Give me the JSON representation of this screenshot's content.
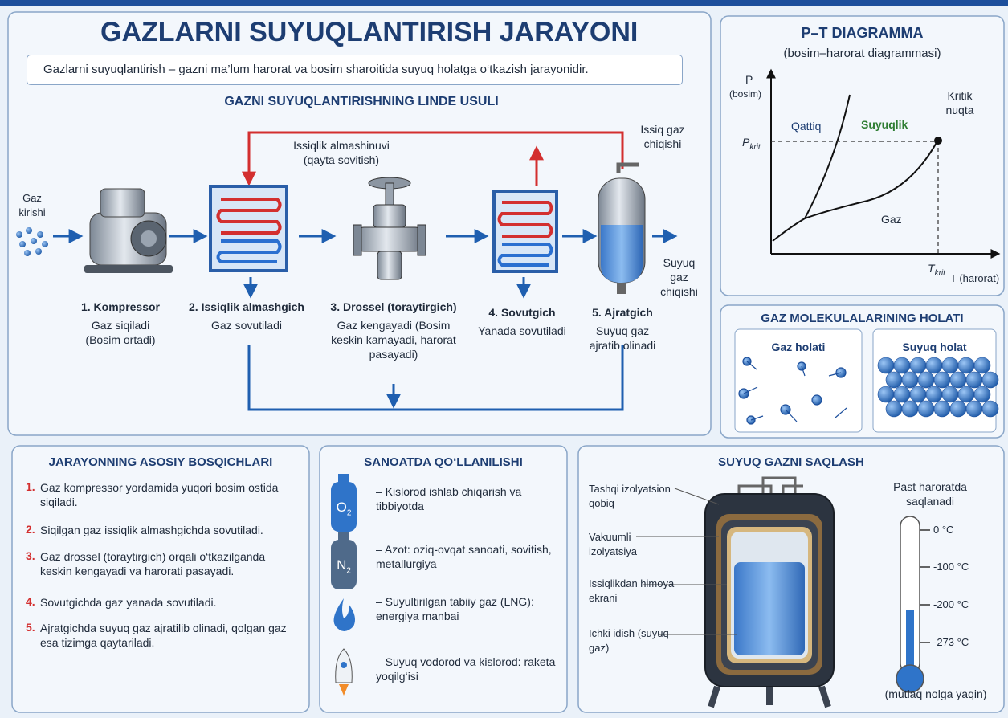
{
  "title": "GAZLARNI SUYUQLANTIRISH JARAYONI",
  "definition": "Gazlarni suyuqlantirish – gazni ma’lum harorat va bosim sharoitida suyuq holatga o‘tkazish jarayonidir.",
  "process": {
    "title": "GAZNI SUYUQLANTIRISHNING LINDE USULI",
    "input": "Gaz kirishi",
    "output": "Suyuq gaz chiqishi",
    "hot_exit": "Issiq gaz chiqishi",
    "heat_exchange": "Issiqlik almashinuvi (qayta sovitish)",
    "steps": [
      {
        "name": "1. Kompressor",
        "desc": "Gaz siqiladi (Bosim ortadi)"
      },
      {
        "name": "2. Issiqlik almashgich",
        "desc": "Gaz sovutiladi"
      },
      {
        "name": "3. Drossel (toraytirgich)",
        "desc": "Gaz kengayadi (Bosim keskin kamayadi, harorat pasayadi)"
      },
      {
        "name": "4. Sovutgich",
        "desc": "Yanada sovutiladi"
      },
      {
        "name": "5. Ajratgich",
        "desc": "Suyuq gaz ajratib olinadi"
      }
    ]
  },
  "pt_diagram": {
    "title": "P–T DIAGRAMMA",
    "subtitle": "(bosim–harorat diagrammasi)",
    "y_label": "P",
    "y_sub": "(bosim)",
    "x_label": "T (harorat)",
    "solid": "Qattiq",
    "liquid": "Suyuqlik",
    "gas": "Gaz",
    "critical": "Kritik nuqta",
    "p_crit": "P",
    "p_crit_sub": "krit",
    "t_crit": "T",
    "t_crit_sub": "krit"
  },
  "molecules": {
    "title": "GAZ MOLEKULALARINING HOLATI",
    "gas": "Gaz holati",
    "liquid": "Suyuq holat"
  },
  "stages": {
    "title": "JARAYONNING ASOSIY BOSQICHLARI",
    "items": [
      {
        "num": "1.",
        "text": "Gaz kompressor yordamida yuqori bosim ostida siqiladi."
      },
      {
        "num": "2.",
        "text": "Siqilgan gaz issiqlik almashgichda sovutiladi."
      },
      {
        "num": "3.",
        "text": "Gaz drossel (toraytirgich) orqali o‘tkazilganda keskin kengayadi va harorati pasayadi."
      },
      {
        "num": "4.",
        "text": "Sovutgichda gaz yanada sovutiladi."
      },
      {
        "num": "5.",
        "text": "Ajratgichda suyuq gaz ajratilib olinadi, qolgan gaz esa tizimga qaytariladi."
      }
    ]
  },
  "industry": {
    "title": "SANOATDA QO‘LLANILISHI",
    "items": [
      {
        "icon": "O",
        "icon_sub": "2",
        "text": "– Kislorod ishlab chiqarish va tibbiyotda"
      },
      {
        "icon": "N",
        "icon_sub": "2",
        "text": "– Azot: oziq-ovqat sanoati, sovitish, metallurgiya"
      },
      {
        "text": "– Suyultirilgan tabiiy gaz (LNG): energiya manbai"
      },
      {
        "text": "– Suyuq vodorod va kislorod: raketa yoqilg‘isi"
      }
    ]
  },
  "storage": {
    "title": "SUYUQ GAZNI SAQLASH",
    "labels": [
      "Tashqi izolyatsion qobiq",
      "Vakuumli izolyatsiya",
      "Issiqlikdan himoya ekrani",
      "Ichki idish (suyuq gaz)"
    ],
    "thermometer_title": "Past haroratda saqlanadi",
    "scale": [
      "0 °C",
      "-100 °C",
      "-200 °C",
      "-273 °C"
    ],
    "thermometer_note": "(mutlaq nolga yaqin)"
  }
}
